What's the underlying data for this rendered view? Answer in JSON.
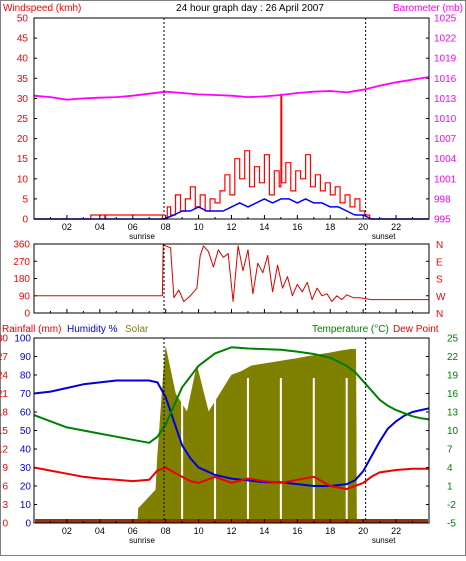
{
  "title": "24 hour graph day : 26 April 2007",
  "hour_labels": [
    "02",
    "04",
    "06",
    "08",
    "10",
    "12",
    "14",
    "16",
    "18",
    "20",
    "22"
  ],
  "sunrise_label": "sunrise",
  "sunset_label": "sunset",
  "sunrise_hour": 7.9,
  "sunset_hour": 20.15,
  "chart_data": [
    {
      "type": "line",
      "title": "24 hour graph day : 26 April 2007",
      "series": [
        {
          "name": "Windspeed (kmh)",
          "color": "#ff0000",
          "axis": "left",
          "x": [
            0,
            3.4,
            3.45,
            4.3,
            4.35,
            7.8,
            8.1,
            8.3,
            8.6,
            8.9,
            9.2,
            9.5,
            9.8,
            10.1,
            10.4,
            10.7,
            11,
            11.3,
            11.6,
            11.9,
            12.2,
            12.5,
            12.8,
            13.1,
            13.4,
            13.7,
            14,
            14.3,
            14.6,
            14.9,
            15.0,
            15.05,
            15.3,
            15.6,
            15.9,
            16.2,
            16.5,
            16.8,
            17.1,
            17.4,
            17.7,
            18,
            18.3,
            18.6,
            18.9,
            19.2,
            19.5,
            19.8,
            20.1,
            20.4,
            24
          ],
          "y": [
            0,
            0,
            1,
            0,
            1,
            0,
            3,
            1,
            6,
            2,
            5,
            8,
            3,
            6,
            2,
            5,
            4,
            7,
            11,
            6,
            15,
            10,
            17,
            8,
            13,
            9,
            16,
            6,
            12,
            8,
            31,
            9,
            14,
            7,
            12,
            10,
            16,
            8,
            11,
            7,
            9,
            6,
            8,
            4,
            6,
            3,
            5,
            2,
            1,
            0,
            0
          ]
        },
        {
          "name": "Average windspeed",
          "color": "#0000ff",
          "axis": "left",
          "x": [
            0,
            7.9,
            8.5,
            9,
            9.5,
            10,
            10.5,
            11,
            11.5,
            12,
            12.5,
            13,
            13.5,
            14,
            14.5,
            15,
            15.5,
            16,
            16.5,
            17,
            17.5,
            18,
            18.5,
            19,
            19.5,
            20,
            20.5,
            24
          ],
          "y": [
            0,
            0,
            1,
            2,
            2,
            3,
            2,
            2,
            2,
            3,
            4,
            3,
            4,
            5,
            4,
            5,
            5,
            4,
            5,
            4,
            4,
            3,
            3,
            2,
            1,
            1,
            0,
            0
          ]
        },
        {
          "name": "Barometer (mb)",
          "color": "#ff00ff",
          "axis": "right",
          "x": [
            0,
            1,
            2,
            3,
            4,
            5,
            6,
            7,
            8,
            9,
            10,
            11,
            12,
            13,
            14,
            15,
            16,
            17,
            18,
            19,
            20,
            21,
            22,
            23,
            24
          ],
          "y": [
            1013.4,
            1013.2,
            1012.8,
            1013.0,
            1013.1,
            1013.2,
            1013.4,
            1013.7,
            1014.0,
            1013.8,
            1013.6,
            1013.5,
            1013.4,
            1013.2,
            1013.3,
            1013.5,
            1013.8,
            1014.0,
            1014.1,
            1013.9,
            1014.3,
            1014.9,
            1015.4,
            1015.8,
            1016.2
          ]
        }
      ],
      "left_axis": {
        "label": "Windspeed (kmh)",
        "min": 0,
        "max": 50,
        "ticks": [
          0,
          5,
          10,
          15,
          20,
          25,
          30,
          35,
          40,
          45,
          50
        ]
      },
      "right_axis": {
        "label": "Barometer (mb)",
        "min": 995,
        "max": 1025,
        "ticks": [
          995,
          998,
          1001,
          1004,
          1007,
          1010,
          1013,
          1016,
          1019,
          1022,
          1025
        ]
      }
    },
    {
      "type": "line",
      "series": [
        {
          "name": "Wind direction",
          "color": "#dd0000",
          "x": [
            0,
            7.8,
            7.85,
            8.3,
            8.5,
            8.8,
            9.1,
            9.5,
            9.9,
            10.1,
            10.3,
            10.6,
            10.9,
            11.2,
            11.5,
            11.8,
            12.1,
            12.4,
            12.7,
            13.0,
            13.3,
            13.6,
            13.9,
            14.2,
            14.5,
            14.8,
            15.1,
            15.4,
            15.7,
            16.0,
            16.3,
            16.6,
            16.9,
            17.2,
            17.5,
            17.8,
            18.1,
            18.4,
            18.7,
            19.0,
            19.4,
            19.8,
            20.5,
            24
          ],
          "y": [
            90,
            90,
            355,
            340,
            80,
            120,
            60,
            90,
            130,
            300,
            350,
            320,
            240,
            330,
            290,
            310,
            60,
            350,
            220,
            330,
            100,
            260,
            210,
            300,
            110,
            250,
            130,
            190,
            90,
            150,
            110,
            160,
            70,
            130,
            90,
            100,
            60,
            90,
            70,
            95,
            80,
            80,
            70,
            70
          ]
        }
      ],
      "left_axis": {
        "min": 0,
        "max": 360,
        "ticks": [
          0,
          90,
          180,
          270,
          360
        ]
      },
      "right_axis_labels": [
        "N",
        "W",
        "S",
        "E",
        "N"
      ]
    },
    {
      "type": "line",
      "series": [
        {
          "name": "Humidity %",
          "color": "#0000dd",
          "axis": "humidity",
          "x": [
            0,
            1,
            2,
            3,
            4,
            5,
            6,
            7,
            7.5,
            8,
            8.5,
            9,
            9.5,
            10,
            10.5,
            11,
            11.5,
            12,
            13,
            14,
            15,
            16,
            17,
            18,
            19,
            19.5,
            20,
            20.5,
            21,
            21.5,
            22,
            22.5,
            23,
            23.5,
            24
          ],
          "y": [
            70,
            71,
            73,
            75,
            76,
            77,
            77,
            77,
            76,
            68,
            55,
            42,
            35,
            30,
            28,
            26,
            25,
            24,
            23,
            22,
            22,
            21,
            20,
            20,
            21,
            23,
            28,
            36,
            44,
            51,
            55,
            58,
            60,
            61,
            62
          ]
        },
        {
          "name": "Solar",
          "color": "#808000",
          "axis": "humidity",
          "style": "area",
          "x": [
            0,
            6.3,
            6.35,
            7.4,
            7.5,
            7.9,
            8.0,
            8.6,
            9.3,
            9.9,
            10.6,
            11.3,
            12.0,
            12.6,
            13.2,
            13.9,
            14.6,
            15.3,
            16.0,
            16.6,
            17.3,
            18.0,
            18.6,
            19.3,
            19.55,
            19.6,
            24
          ],
          "y": [
            0,
            0,
            8,
            18,
            35,
            85,
            95,
            70,
            60,
            85,
            60,
            70,
            80,
            82,
            85,
            86,
            87,
            88,
            89,
            90,
            91,
            92,
            93,
            94,
            94,
            0,
            0
          ]
        },
        {
          "name": "Temperature (°C)",
          "color": "#008000",
          "axis": "temp",
          "x": [
            0,
            1,
            2,
            3,
            4,
            5,
            6,
            7,
            7.5,
            8,
            8.5,
            9,
            10,
            11,
            12,
            13,
            14,
            15,
            16,
            17,
            18,
            19,
            19.5,
            20,
            20.5,
            21,
            21.5,
            22,
            22.5,
            23,
            23.5,
            24
          ],
          "y": [
            12.5,
            11.5,
            10.5,
            10,
            9.5,
            9,
            8.5,
            8,
            9,
            11,
            14,
            17,
            20.5,
            22.5,
            23.5,
            23.3,
            23.2,
            23.1,
            22.8,
            22.4,
            21.8,
            20.5,
            19.5,
            18,
            16.5,
            15,
            14,
            13.3,
            12.8,
            12.3,
            12,
            11.8
          ]
        },
        {
          "name": "Dew Point",
          "color": "#ee0000",
          "axis": "temp",
          "x": [
            0,
            1,
            2,
            3,
            4,
            5,
            6,
            7,
            7.5,
            8,
            8.5,
            9,
            9.5,
            10,
            11,
            12,
            13,
            14,
            15,
            16,
            17,
            18,
            19,
            20,
            20.5,
            21,
            22,
            23,
            24
          ],
          "y": [
            4,
            3.5,
            3,
            2.5,
            2.2,
            2,
            1.8,
            2,
            3.5,
            4,
            3.2,
            2.5,
            1.8,
            1.5,
            2.5,
            1.5,
            2.2,
            1.8,
            1.5,
            2,
            2.5,
            1,
            0.5,
            1.5,
            2.5,
            3.2,
            3.6,
            3.8,
            3.8
          ]
        },
        {
          "name": "Rainfall (mm)",
          "color": "#993300",
          "axis": "rain",
          "x": [
            0,
            24
          ],
          "y": [
            0,
            0
          ]
        }
      ],
      "rain_axis": {
        "label": "Rainfall (mm)",
        "min": 0,
        "max": 30,
        "ticks": [
          "0",
          "3",
          "6",
          "9",
          "12",
          "15",
          "18",
          "21",
          "24",
          "27",
          "30"
        ]
      },
      "humidity_axis": {
        "label": "Humidity %",
        "min": 0,
        "max": 100,
        "ticks": [
          "0",
          "10",
          "20",
          "30",
          "40",
          "50",
          "60",
          "70",
          "80",
          "90",
          "100"
        ]
      },
      "solar_label": "Solar",
      "temp_axis": {
        "label": "Temperature (°C)",
        "min": -5,
        "max": 25,
        "ticks": [
          "-5",
          "-2",
          "1",
          "4",
          "7",
          "10",
          "13",
          "16",
          "19",
          "22",
          "25"
        ]
      },
      "dewpoint_label": "Dew Point"
    }
  ]
}
